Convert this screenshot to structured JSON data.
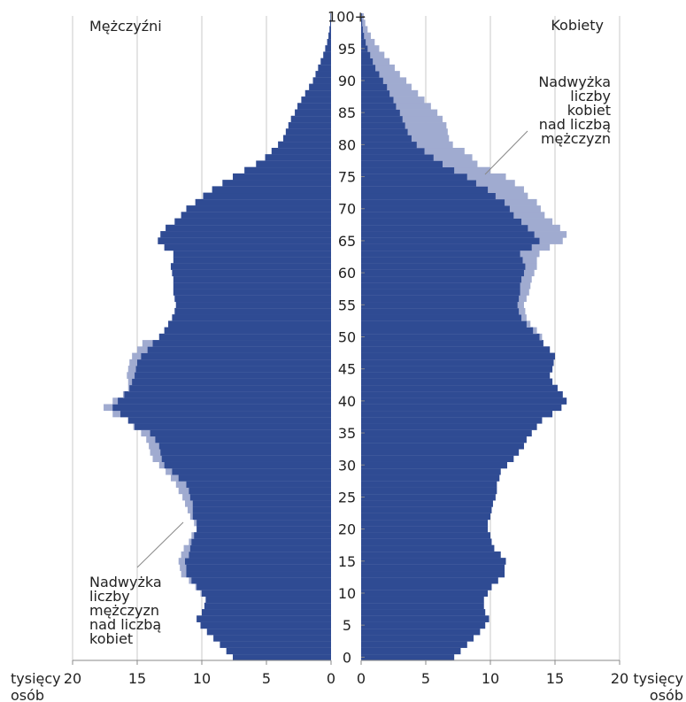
{
  "chart_data": {
    "type": "bar",
    "orientation": "horizontal-pyramid",
    "labels": {
      "men": "Mężczyźni",
      "women": "Kobiety",
      "x_unit_left": [
        "tysięcy",
        "osób"
      ],
      "x_unit_right": [
        "tysięcy",
        "osób"
      ],
      "men_surplus_note": [
        "Nadwyżka",
        "liczby",
        "mężczyzn",
        "nad liczbą",
        "kobiet"
      ],
      "women_surplus_note": [
        "Nadwyżka",
        "liczby",
        "kobiet",
        "nad liczbą",
        "mężczyzn"
      ]
    },
    "xlim": [
      0,
      20
    ],
    "x_ticks": [
      20,
      15,
      10,
      5,
      0
    ],
    "x_ticks_right": [
      0,
      5,
      10,
      15,
      20
    ],
    "age_ticks": [
      "0",
      "5",
      "10",
      "15",
      "20",
      "25",
      "30",
      "35",
      "40",
      "45",
      "50",
      "55",
      "60",
      "65",
      "70",
      "75",
      "80",
      "85",
      "90",
      "95",
      "100+"
    ],
    "age_range": [
      0,
      100
    ],
    "colors": {
      "dark": "#2f4b93",
      "light": "#a0abd0",
      "grid": "#c8c8c8",
      "axis": "#888888"
    },
    "series": [
      {
        "name": "Mężczyźni",
        "values": [
          7.6,
          8.1,
          8.6,
          9.1,
          9.6,
          10.1,
          10.4,
          10.0,
          9.8,
          9.7,
          10.0,
          10.4,
          10.8,
          11.2,
          11.2,
          11.3,
          11.0,
          10.9,
          10.8,
          10.6,
          10.4,
          10.4,
          10.7,
          10.7,
          10.7,
          10.9,
          11.0,
          11.2,
          11.8,
          12.3,
          12.9,
          13.1,
          13.2,
          13.3,
          13.6,
          14.0,
          15.2,
          15.7,
          16.3,
          16.9,
          16.5,
          16.0,
          15.6,
          15.4,
          15.2,
          15.1,
          15.0,
          14.7,
          14.2,
          13.8,
          13.3,
          12.9,
          12.6,
          12.3,
          12.1,
          12.0,
          12.1,
          12.2,
          12.2,
          12.2,
          12.3,
          12.4,
          12.2,
          12.2,
          12.9,
          13.4,
          13.2,
          12.8,
          12.1,
          11.6,
          11.2,
          10.5,
          9.9,
          9.2,
          8.4,
          7.6,
          6.7,
          5.8,
          5.1,
          4.6,
          4.1,
          3.7,
          3.5,
          3.3,
          3.1,
          2.8,
          2.6,
          2.3,
          2.0,
          1.7,
          1.4,
          1.2,
          1.0,
          0.8,
          0.6,
          0.45,
          0.3,
          0.2,
          0.12,
          0.07,
          0.04
        ]
      },
      {
        "name": "Kobiety",
        "values": [
          7.2,
          7.7,
          8.2,
          8.7,
          9.2,
          9.6,
          9.9,
          9.6,
          9.5,
          9.5,
          9.8,
          10.1,
          10.6,
          11.1,
          11.1,
          11.2,
          10.8,
          10.3,
          10.1,
          10.0,
          9.8,
          9.8,
          10.0,
          10.1,
          10.2,
          10.4,
          10.5,
          10.5,
          10.7,
          10.8,
          11.3,
          11.8,
          12.2,
          12.6,
          12.8,
          13.2,
          13.6,
          14.0,
          14.8,
          15.5,
          15.9,
          15.6,
          15.2,
          14.8,
          14.6,
          14.8,
          14.9,
          15.0,
          14.6,
          14.1,
          13.8,
          13.3,
          12.8,
          12.4,
          12.2,
          12.1,
          12.2,
          12.3,
          12.3,
          12.4,
          12.6,
          12.7,
          12.5,
          12.3,
          13.2,
          13.8,
          13.4,
          12.9,
          12.4,
          11.8,
          11.5,
          11.1,
          10.4,
          9.8,
          8.9,
          8.2,
          7.2,
          6.3,
          5.6,
          4.9,
          4.3,
          3.9,
          3.6,
          3.4,
          3.2,
          3.0,
          2.7,
          2.5,
          2.2,
          2.0,
          1.7,
          1.4,
          1.1,
          0.9,
          0.7,
          0.5,
          0.35,
          0.22,
          0.13,
          0.08,
          0.05
        ]
      },
      {
        "name": "Mężczyźni (surplus outline)",
        "values": [
          7.6,
          8.1,
          8.6,
          9.1,
          9.6,
          10.1,
          10.4,
          10.0,
          9.8,
          9.7,
          10.1,
          10.5,
          11.0,
          11.6,
          11.7,
          11.8,
          11.6,
          11.4,
          11.0,
          10.8,
          10.4,
          10.6,
          10.9,
          11.1,
          11.3,
          11.5,
          11.8,
          12.0,
          12.4,
          12.8,
          13.3,
          13.8,
          14.0,
          14.1,
          14.3,
          14.7,
          15.3,
          15.7,
          16.9,
          17.6,
          16.9,
          16.1,
          15.7,
          15.7,
          15.8,
          15.7,
          15.6,
          15.4,
          15.0,
          14.6,
          13.3,
          12.9,
          12.6,
          12.3,
          12.1,
          12.0,
          12.1,
          12.2,
          12.2,
          12.2,
          12.3,
          12.4,
          12.2,
          12.2,
          12.9,
          13.4,
          13.2,
          12.8,
          12.1,
          11.6,
          11.2,
          10.5,
          9.9,
          9.2,
          8.4,
          7.6,
          6.7,
          5.8,
          5.1,
          4.6,
          4.1,
          3.7,
          3.5,
          3.3,
          3.1,
          2.8,
          2.6,
          2.3,
          2.0,
          1.7,
          1.4,
          1.2,
          1.0,
          0.8,
          0.6,
          0.45,
          0.3,
          0.2,
          0.12,
          0.07,
          0.04
        ]
      },
      {
        "name": "Kobiety (surplus outline)",
        "values": [
          7.2,
          7.7,
          8.2,
          8.7,
          9.2,
          9.6,
          9.9,
          9.6,
          9.5,
          9.5,
          9.8,
          10.1,
          10.6,
          11.1,
          11.1,
          11.2,
          10.8,
          10.3,
          10.1,
          10.0,
          9.8,
          9.8,
          10.0,
          10.1,
          10.2,
          10.4,
          10.5,
          10.5,
          10.7,
          10.8,
          11.3,
          11.8,
          12.2,
          12.6,
          12.8,
          13.2,
          13.6,
          14.0,
          14.8,
          15.5,
          15.9,
          15.6,
          15.2,
          14.8,
          14.6,
          14.8,
          14.9,
          15.0,
          14.6,
          14.1,
          14.0,
          13.6,
          13.1,
          12.8,
          12.7,
          12.6,
          12.8,
          13.0,
          13.1,
          13.2,
          13.4,
          13.6,
          13.6,
          13.8,
          14.6,
          15.6,
          15.9,
          15.4,
          14.8,
          14.2,
          13.9,
          13.6,
          12.9,
          12.6,
          11.9,
          11.2,
          10.0,
          9.0,
          8.6,
          8.0,
          7.1,
          6.8,
          6.7,
          6.6,
          6.3,
          5.9,
          5.4,
          4.9,
          4.4,
          3.9,
          3.5,
          3.0,
          2.6,
          2.2,
          1.8,
          1.4,
          1.05,
          0.75,
          0.5,
          0.32,
          0.2
        ]
      }
    ]
  }
}
